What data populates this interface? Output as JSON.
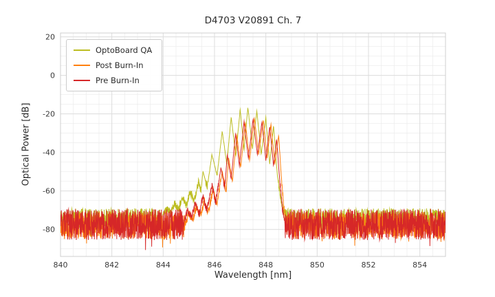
{
  "title": "D4703 V20891 Ch. 7",
  "chart_data": {
    "type": "line",
    "title": "D4703 V20891 Ch. 7",
    "xlabel": "Wavelength [nm]",
    "ylabel": "Optical Power [dB]",
    "xlim": [
      840,
      855
    ],
    "ylim": [
      -94,
      22
    ],
    "x_ticks": [
      840,
      842,
      844,
      846,
      848,
      850,
      852,
      854
    ],
    "y_ticks": [
      20,
      0,
      -20,
      -40,
      -60,
      -80
    ],
    "x_minor_step": 0.5,
    "y_minor_step": 5,
    "grid": true,
    "legend_position": "upper-left",
    "series": [
      {
        "name": "OptoBoard QA",
        "color": "#bcbd22",
        "anchors": [
          [
            844.0,
            -72
          ],
          [
            844.15,
            -69.5
          ],
          [
            844.3,
            -71.5
          ],
          [
            844.45,
            -66
          ],
          [
            844.6,
            -70
          ],
          [
            844.75,
            -63
          ],
          [
            844.9,
            -68
          ],
          [
            845.05,
            -60
          ],
          [
            845.2,
            -66
          ],
          [
            845.38,
            -55
          ],
          [
            845.47,
            -60
          ],
          [
            845.55,
            -50
          ],
          [
            845.72,
            -58
          ],
          [
            845.9,
            -41
          ],
          [
            846.1,
            -52
          ],
          [
            846.3,
            -29
          ],
          [
            846.48,
            -46
          ],
          [
            846.65,
            -21.5
          ],
          [
            846.83,
            -42
          ],
          [
            847.0,
            -17.5
          ],
          [
            847.15,
            -39
          ],
          [
            847.3,
            -16.5
          ],
          [
            847.48,
            -38
          ],
          [
            847.65,
            -18.5
          ],
          [
            847.82,
            -41
          ],
          [
            848.0,
            -22
          ],
          [
            848.15,
            -46
          ],
          [
            848.3,
            -26
          ],
          [
            848.45,
            -52
          ],
          [
            848.58,
            -64
          ],
          [
            848.7,
            -71
          ],
          [
            848.75,
            -73
          ]
        ],
        "noise": {
          "base": -74.5,
          "amp": 5.5,
          "seed": 11,
          "regions": [
            [
              840,
              844.0
            ],
            [
              848.75,
              855.01
            ]
          ]
        }
      },
      {
        "name": "Post Burn-In",
        "color": "#ff7f0e",
        "anchors": [
          [
            844.85,
            -77
          ],
          [
            845.0,
            -72
          ],
          [
            845.15,
            -75
          ],
          [
            845.3,
            -68
          ],
          [
            845.45,
            -73
          ],
          [
            845.6,
            -65
          ],
          [
            845.75,
            -71
          ],
          [
            845.95,
            -59
          ],
          [
            846.1,
            -67
          ],
          [
            846.3,
            -50
          ],
          [
            846.45,
            -60
          ],
          [
            846.55,
            -43
          ],
          [
            846.7,
            -55
          ],
          [
            846.87,
            -31
          ],
          [
            847.02,
            -48
          ],
          [
            847.2,
            -24.5
          ],
          [
            847.37,
            -44
          ],
          [
            847.55,
            -22
          ],
          [
            847.72,
            -41
          ],
          [
            847.9,
            -23
          ],
          [
            848.05,
            -43
          ],
          [
            848.2,
            -25.5
          ],
          [
            848.35,
            -46
          ],
          [
            848.5,
            -31
          ],
          [
            848.6,
            -52
          ],
          [
            848.7,
            -68
          ],
          [
            848.8,
            -77
          ]
        ],
        "noise": {
          "base": -78,
          "amp": 7,
          "seed": 22,
          "regions": [
            [
              840,
              844.85
            ],
            [
              848.8,
              855.01
            ]
          ]
        }
      },
      {
        "name": "Pre Burn-In",
        "color": "#d62728",
        "anchors": [
          [
            844.8,
            -76
          ],
          [
            844.95,
            -70
          ],
          [
            845.1,
            -74
          ],
          [
            845.25,
            -66
          ],
          [
            845.4,
            -72
          ],
          [
            845.55,
            -63
          ],
          [
            845.7,
            -70
          ],
          [
            845.9,
            -57
          ],
          [
            846.05,
            -66
          ],
          [
            846.25,
            -48
          ],
          [
            846.4,
            -58
          ],
          [
            846.5,
            -41
          ],
          [
            846.65,
            -54
          ],
          [
            846.82,
            -30
          ],
          [
            846.97,
            -47
          ],
          [
            847.15,
            -24
          ],
          [
            847.32,
            -43
          ],
          [
            847.5,
            -22.8
          ],
          [
            847.67,
            -41
          ],
          [
            847.85,
            -24
          ],
          [
            848.0,
            -44
          ],
          [
            848.15,
            -26.5
          ],
          [
            848.3,
            -47
          ],
          [
            848.42,
            -33
          ],
          [
            848.55,
            -56
          ],
          [
            848.65,
            -70
          ],
          [
            848.75,
            -77
          ]
        ],
        "noise": {
          "base": -77.5,
          "amp": 8,
          "seed": 33,
          "regions": [
            [
              840,
              844.8
            ],
            [
              848.75,
              855.01
            ]
          ]
        }
      }
    ]
  }
}
